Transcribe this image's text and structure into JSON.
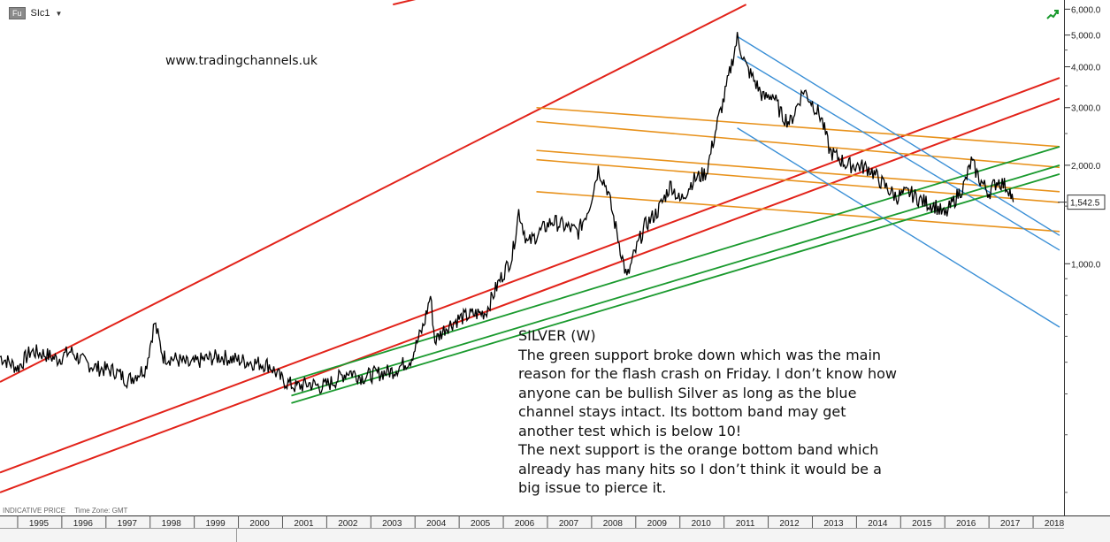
{
  "header": {
    "badge": "Fu",
    "symbol": "SIc1",
    "caret": "▼"
  },
  "watermark": "www.tradingchannels.uk",
  "annotation": {
    "lines": [
      "SILVER (W)",
      "The green support broke down which was the main",
      "reason for the flash crash on Friday. I don’t know how",
      "anyone can be bullish Silver as long as the blue",
      "channel stays intact. Its bottom band may get",
      "another test which is below 10!",
      "The next support is the orange bottom band which",
      "already has many hits so I don’t think it would be a",
      "big issue to pierce it."
    ]
  },
  "footer": {
    "price_type": "INDICATIVE PRICE",
    "time_zone": "Time Zone: GMT"
  },
  "status_icon": "trend-up-icon",
  "colors": {
    "price": "#000000",
    "red_channel": "#e2231a",
    "orange_bands": "#e8921c",
    "blue_channel": "#3a8fd6",
    "green_support": "#1a9a2e",
    "last_price_box": "#ffffff"
  },
  "chart_data": {
    "type": "line",
    "scale": "log",
    "xlim": [
      1994.6,
      2018.7
    ],
    "ylim": [
      170,
      6400
    ],
    "yticks": [
      {
        "value": 1000,
        "label": "1,000.0"
      },
      {
        "value": 2000,
        "label": "2,000.0"
      },
      {
        "value": 3000,
        "label": "3,000.0"
      },
      {
        "value": 4000,
        "label": "4,000.0"
      },
      {
        "value": 5000,
        "label": "5,000.0"
      },
      {
        "value": 6000,
        "label": "6,000.0"
      }
    ],
    "xticks": [
      {
        "x": 1995,
        "label": "1995"
      },
      {
        "x": 1996,
        "label": "1996"
      },
      {
        "x": 1997,
        "label": "1997"
      },
      {
        "x": 1998,
        "label": "1998"
      },
      {
        "x": 1999,
        "label": "1999"
      },
      {
        "x": 2000,
        "label": "2000"
      },
      {
        "x": 2001,
        "label": "2001"
      },
      {
        "x": 2002,
        "label": "2002"
      },
      {
        "x": 2003,
        "label": "2003"
      },
      {
        "x": 2004,
        "label": "2004"
      },
      {
        "x": 2005,
        "label": "2005"
      },
      {
        "x": 2006,
        "label": "2006"
      },
      {
        "x": 2007,
        "label": "2007"
      },
      {
        "x": 2008,
        "label": "2008"
      },
      {
        "x": 2009,
        "label": "2009"
      },
      {
        "x": 2010,
        "label": "2010"
      },
      {
        "x": 2011,
        "label": "2011"
      },
      {
        "x": 2012,
        "label": "2012"
      },
      {
        "x": 2013,
        "label": "2013"
      },
      {
        "x": 2014,
        "label": "2014"
      },
      {
        "x": 2015,
        "label": "2015"
      },
      {
        "x": 2016,
        "label": "2016"
      },
      {
        "x": 2017,
        "label": "2017"
      },
      {
        "x": 2018,
        "label": "2018"
      }
    ],
    "last_price": {
      "value": 1542.5,
      "label": "1,542.5"
    },
    "series": [
      {
        "values": [
          [
            1994.6,
            520
          ],
          [
            1995.0,
            480
          ],
          [
            1995.3,
            540
          ],
          [
            1995.6,
            530
          ],
          [
            1995.9,
            510
          ],
          [
            1996.2,
            540
          ],
          [
            1996.5,
            500
          ],
          [
            1996.8,
            480
          ],
          [
            1997.2,
            470
          ],
          [
            1997.5,
            440
          ],
          [
            1997.9,
            480
          ],
          [
            1998.1,
            660
          ],
          [
            1998.3,
            520
          ],
          [
            1998.6,
            510
          ],
          [
            1998.9,
            490
          ],
          [
            1999.2,
            510
          ],
          [
            1999.6,
            520
          ],
          [
            1999.9,
            510
          ],
          [
            2000.3,
            500
          ],
          [
            2000.7,
            490
          ],
          [
            2001.0,
            440
          ],
          [
            2001.3,
            420
          ],
          [
            2001.6,
            430
          ],
          [
            2001.9,
            420
          ],
          [
            2002.2,
            440
          ],
          [
            2002.5,
            470
          ],
          [
            2002.8,
            450
          ],
          [
            2003.1,
            460
          ],
          [
            2003.5,
            470
          ],
          [
            2003.9,
            510
          ],
          [
            2004.2,
            650
          ],
          [
            2004.35,
            800
          ],
          [
            2004.45,
            580
          ],
          [
            2004.7,
            640
          ],
          [
            2005.0,
            680
          ],
          [
            2005.3,
            700
          ],
          [
            2005.6,
            710
          ],
          [
            2005.9,
            880
          ],
          [
            2006.2,
            1050
          ],
          [
            2006.35,
            1450
          ],
          [
            2006.55,
            1150
          ],
          [
            2006.8,
            1240
          ],
          [
            2007.1,
            1350
          ],
          [
            2007.4,
            1300
          ],
          [
            2007.7,
            1250
          ],
          [
            2007.95,
            1500
          ],
          [
            2008.15,
            1950
          ],
          [
            2008.35,
            1700
          ],
          [
            2008.6,
            1200
          ],
          [
            2008.8,
            900
          ],
          [
            2008.95,
            1050
          ],
          [
            2009.2,
            1300
          ],
          [
            2009.5,
            1450
          ],
          [
            2009.8,
            1750
          ],
          [
            2010.0,
            1550
          ],
          [
            2010.3,
            1800
          ],
          [
            2010.6,
            1900
          ],
          [
            2010.85,
            2700
          ],
          [
            2011.0,
            3200
          ],
          [
            2011.3,
            4900
          ],
          [
            2011.5,
            4000
          ],
          [
            2011.7,
            3600
          ],
          [
            2011.9,
            3200
          ],
          [
            2012.1,
            3300
          ],
          [
            2012.3,
            2850
          ],
          [
            2012.5,
            2700
          ],
          [
            2012.8,
            3400
          ],
          [
            2013.0,
            3100
          ],
          [
            2013.2,
            2800
          ],
          [
            2013.4,
            2200
          ],
          [
            2013.6,
            2100
          ],
          [
            2013.8,
            2000
          ],
          [
            2014.0,
            2000
          ],
          [
            2014.3,
            1950
          ],
          [
            2014.6,
            1750
          ],
          [
            2014.9,
            1600
          ],
          [
            2015.2,
            1650
          ],
          [
            2015.5,
            1550
          ],
          [
            2015.8,
            1500
          ],
          [
            2016.0,
            1400
          ],
          [
            2016.2,
            1550
          ],
          [
            2016.45,
            1750
          ],
          [
            2016.6,
            2050
          ],
          [
            2016.8,
            1800
          ],
          [
            2017.0,
            1650
          ],
          [
            2017.2,
            1800
          ],
          [
            2017.45,
            1700
          ],
          [
            2017.55,
            1542.5
          ]
        ]
      }
    ],
    "trendlines": [
      {
        "group": "red",
        "from": [
          1994.6,
          435
        ],
        "to": [
          2011.5,
          6200
        ]
      },
      {
        "group": "red",
        "from": [
          1994.6,
          230
        ],
        "to": [
          2018.6,
          3700
        ]
      },
      {
        "group": "red",
        "from": [
          1994.6,
          200
        ],
        "to": [
          2018.6,
          3200
        ]
      },
      {
        "group": "red",
        "from": [
          2003.5,
          6200
        ],
        "to": [
          2010.0,
          10000
        ]
      },
      {
        "group": "orange",
        "from": [
          2006.75,
          3000
        ],
        "to": [
          2018.6,
          2280
        ]
      },
      {
        "group": "orange",
        "from": [
          2006.75,
          2720
        ],
        "to": [
          2018.6,
          1970
        ]
      },
      {
        "group": "orange",
        "from": [
          2006.75,
          2220
        ],
        "to": [
          2018.6,
          1660
        ]
      },
      {
        "group": "orange",
        "from": [
          2006.75,
          2080
        ],
        "to": [
          2018.6,
          1540
        ]
      },
      {
        "group": "orange",
        "from": [
          2006.75,
          1660
        ],
        "to": [
          2018.6,
          1255
        ]
      },
      {
        "group": "blue",
        "from": [
          2011.3,
          4950
        ],
        "to": [
          2018.6,
          1220
        ]
      },
      {
        "group": "blue",
        "from": [
          2011.3,
          4300
        ],
        "to": [
          2018.6,
          1100
        ]
      },
      {
        "group": "blue",
        "from": [
          2011.3,
          2600
        ],
        "to": [
          2018.6,
          640
        ]
      },
      {
        "group": "green",
        "from": [
          2001.2,
          440
        ],
        "to": [
          2018.6,
          2280
        ]
      },
      {
        "group": "green",
        "from": [
          2001.2,
          395
        ],
        "to": [
          2018.6,
          2000
        ]
      },
      {
        "group": "green",
        "from": [
          2001.2,
          375
        ],
        "to": [
          2018.6,
          1880
        ]
      }
    ]
  }
}
